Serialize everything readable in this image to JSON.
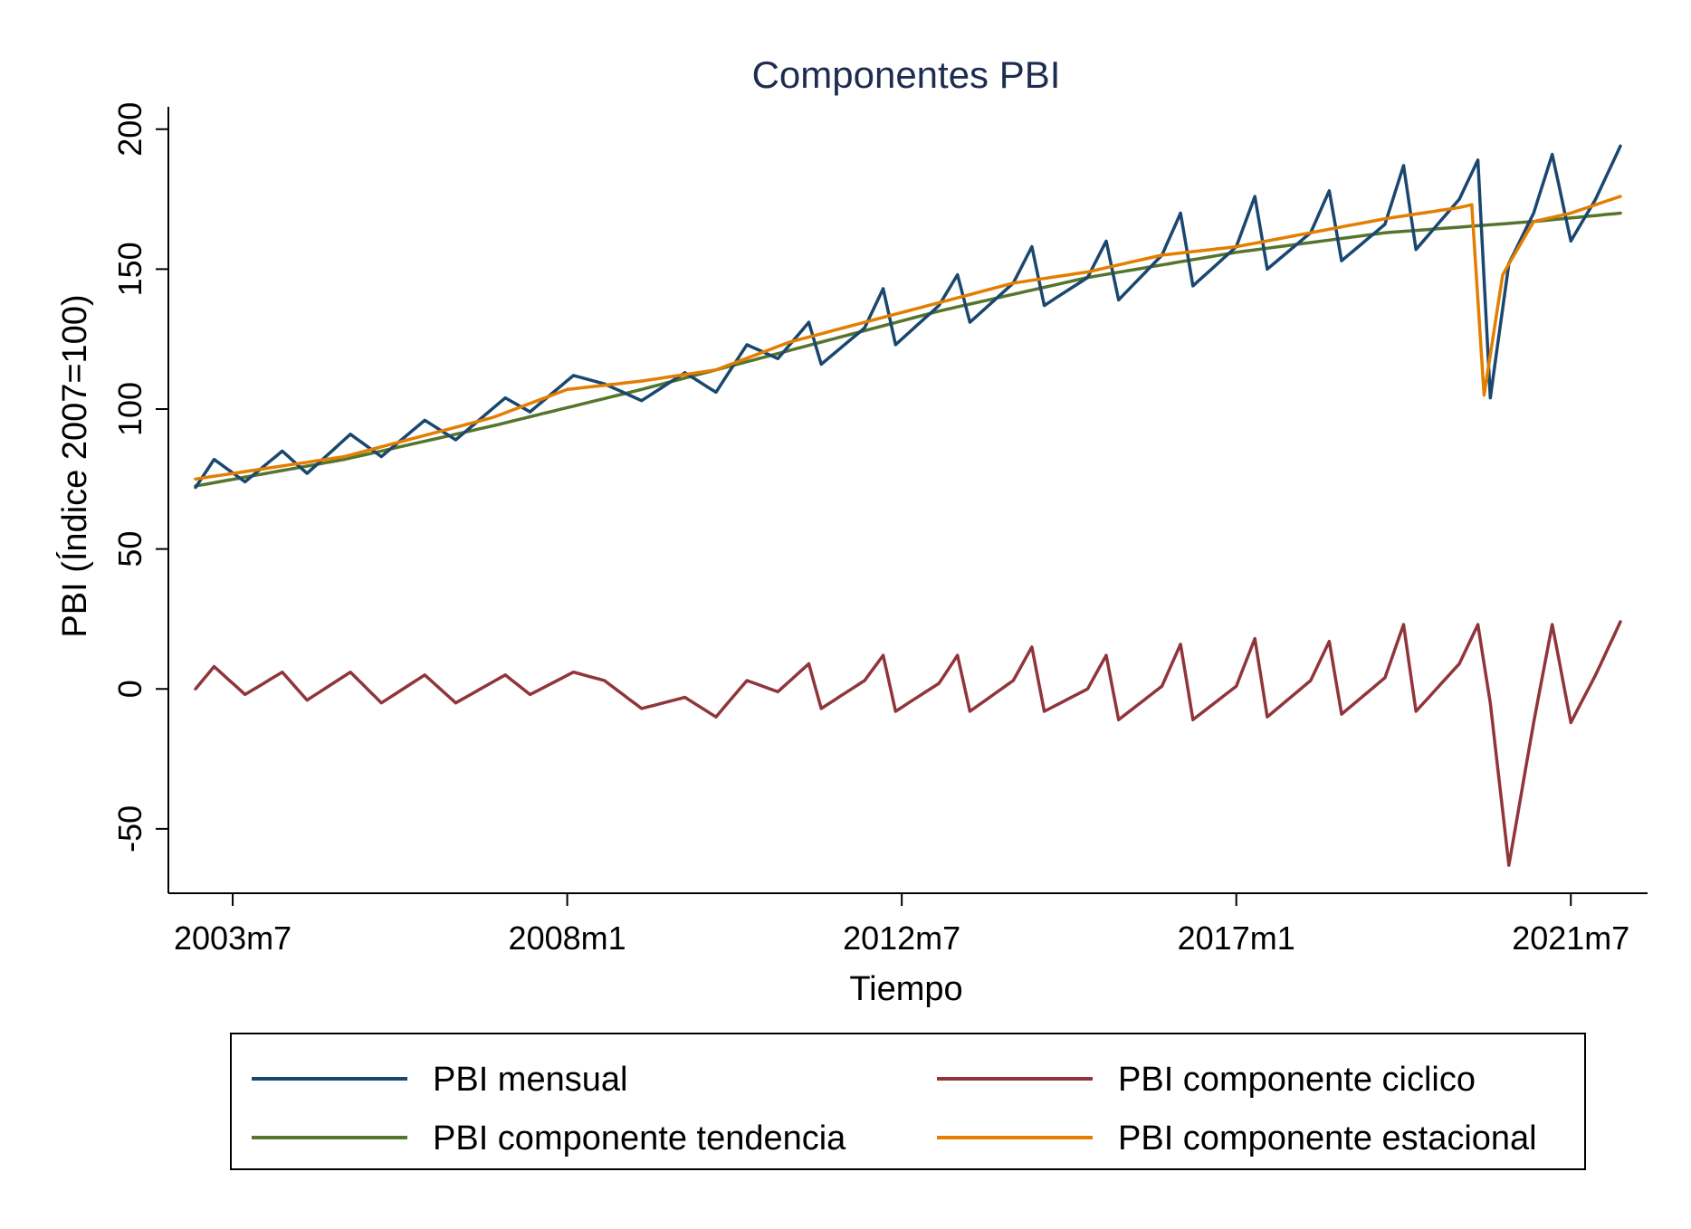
{
  "chart_data": {
    "type": "line",
    "title": "Componentes PBI",
    "xlabel": "Tiempo",
    "ylabel": "PBI (Índice 2007=100)",
    "x_start": "2003m1",
    "x_end": "2022m3",
    "x_ticks": [
      "2003m7",
      "2008m1",
      "2012m7",
      "2017m1",
      "2021m7"
    ],
    "y_ticks": [
      "-50",
      "0",
      "50",
      "100",
      "150",
      "200"
    ],
    "ylim": [
      -73,
      208
    ],
    "grid": false,
    "legend_position": "bottom",
    "colors": {
      "mensual": "#1a476f",
      "tendencia": "#55752f",
      "estacional": "#e37e00",
      "ciclico": "#90353b"
    },
    "series": [
      {
        "name": "PBI mensual",
        "color": "#1a476f",
        "keypoints": [
          [
            "2003m1",
            72
          ],
          [
            "2003m4",
            82
          ],
          [
            "2003m9",
            74
          ],
          [
            "2004m3",
            85
          ],
          [
            "2004m7",
            77
          ],
          [
            "2005m2",
            91
          ],
          [
            "2005m7",
            83
          ],
          [
            "2006m2",
            96
          ],
          [
            "2006m7",
            89
          ],
          [
            "2007m3",
            104
          ],
          [
            "2007m7",
            99
          ],
          [
            "2008m2",
            112
          ],
          [
            "2008m7",
            109
          ],
          [
            "2009m1",
            103
          ],
          [
            "2009m8",
            113
          ],
          [
            "2010m1",
            106
          ],
          [
            "2010m6",
            123
          ],
          [
            "2010m11",
            118
          ],
          [
            "2011m4",
            131
          ],
          [
            "2011m6",
            116
          ],
          [
            "2012m1",
            129
          ],
          [
            "2012m4",
            143
          ],
          [
            "2012m6",
            123
          ],
          [
            "2013m1",
            137
          ],
          [
            "2013m4",
            148
          ],
          [
            "2013m6",
            131
          ],
          [
            "2014m1",
            145
          ],
          [
            "2014m4",
            158
          ],
          [
            "2014m6",
            137
          ],
          [
            "2015m1",
            147
          ],
          [
            "2015m4",
            160
          ],
          [
            "2015m6",
            139
          ],
          [
            "2016m1",
            155
          ],
          [
            "2016m4",
            170
          ],
          [
            "2016m6",
            144
          ],
          [
            "2017m1",
            158
          ],
          [
            "2017m4",
            176
          ],
          [
            "2017m6",
            150
          ],
          [
            "2018m1",
            163
          ],
          [
            "2018m4",
            178
          ],
          [
            "2018m6",
            153
          ],
          [
            "2019m1",
            166
          ],
          [
            "2019m4",
            187
          ],
          [
            "2019m6",
            157
          ],
          [
            "2020m1",
            175
          ],
          [
            "2020m4",
            189
          ],
          [
            "2020m6",
            104
          ],
          [
            "2020m9",
            152
          ],
          [
            "2021m1",
            170
          ],
          [
            "2021m4",
            191
          ],
          [
            "2021m7",
            160
          ],
          [
            "2021m11",
            175
          ],
          [
            "2022m3",
            194
          ]
        ]
      },
      {
        "name": "PBI componente tendencia",
        "color": "#55752f",
        "keypoints": [
          [
            "2003m1",
            72.5
          ],
          [
            "2005m1",
            82
          ],
          [
            "2007m1",
            94
          ],
          [
            "2009m1",
            107
          ],
          [
            "2011m1",
            121
          ],
          [
            "2013m1",
            135
          ],
          [
            "2015m1",
            147
          ],
          [
            "2017m1",
            156
          ],
          [
            "2019m1",
            163
          ],
          [
            "2021m1",
            167
          ],
          [
            "2022m3",
            170
          ]
        ]
      },
      {
        "name": "PBI componente estacional",
        "color": "#e37e00",
        "keypoints": [
          [
            "2003m1",
            75
          ],
          [
            "2004m1",
            79
          ],
          [
            "2005m1",
            83
          ],
          [
            "2006m1",
            90
          ],
          [
            "2007m1",
            97
          ],
          [
            "2008m1",
            107
          ],
          [
            "2009m1",
            110
          ],
          [
            "2010m1",
            114
          ],
          [
            "2011m1",
            124
          ],
          [
            "2012m1",
            131
          ],
          [
            "2013m1",
            138
          ],
          [
            "2014m1",
            145
          ],
          [
            "2015m1",
            149
          ],
          [
            "2016m1",
            155
          ],
          [
            "2017m1",
            158
          ],
          [
            "2018m1",
            163
          ],
          [
            "2019m1",
            168
          ],
          [
            "2020m1",
            172
          ],
          [
            "2020m3",
            173
          ],
          [
            "2020m5",
            105
          ],
          [
            "2020m8",
            148
          ],
          [
            "2021m1",
            167
          ],
          [
            "2021m7",
            170
          ],
          [
            "2022m3",
            176
          ]
        ]
      },
      {
        "name": "PBI componente ciclico",
        "color": "#90353b",
        "keypoints": [
          [
            "2003m1",
            0
          ],
          [
            "2003m4",
            8
          ],
          [
            "2003m9",
            -2
          ],
          [
            "2004m3",
            6
          ],
          [
            "2004m7",
            -4
          ],
          [
            "2005m2",
            6
          ],
          [
            "2005m7",
            -5
          ],
          [
            "2006m2",
            5
          ],
          [
            "2006m7",
            -5
          ],
          [
            "2007m3",
            5
          ],
          [
            "2007m7",
            -2
          ],
          [
            "2008m2",
            6
          ],
          [
            "2008m7",
            3
          ],
          [
            "2009m1",
            -7
          ],
          [
            "2009m8",
            -3
          ],
          [
            "2010m1",
            -10
          ],
          [
            "2010m6",
            3
          ],
          [
            "2010m11",
            -1
          ],
          [
            "2011m4",
            9
          ],
          [
            "2011m6",
            -7
          ],
          [
            "2012m1",
            3
          ],
          [
            "2012m4",
            12
          ],
          [
            "2012m6",
            -8
          ],
          [
            "2013m1",
            2
          ],
          [
            "2013m4",
            12
          ],
          [
            "2013m6",
            -8
          ],
          [
            "2014m1",
            3
          ],
          [
            "2014m4",
            15
          ],
          [
            "2014m6",
            -8
          ],
          [
            "2015m1",
            0
          ],
          [
            "2015m4",
            12
          ],
          [
            "2015m6",
            -11
          ],
          [
            "2016m1",
            1
          ],
          [
            "2016m4",
            16
          ],
          [
            "2016m6",
            -11
          ],
          [
            "2017m1",
            1
          ],
          [
            "2017m4",
            18
          ],
          [
            "2017m6",
            -10
          ],
          [
            "2018m1",
            3
          ],
          [
            "2018m4",
            17
          ],
          [
            "2018m6",
            -9
          ],
          [
            "2019m1",
            4
          ],
          [
            "2019m4",
            23
          ],
          [
            "2019m6",
            -8
          ],
          [
            "2020m1",
            9
          ],
          [
            "2020m4",
            23
          ],
          [
            "2020m6",
            -5
          ],
          [
            "2020m9",
            -63
          ],
          [
            "2021m1",
            -12
          ],
          [
            "2021m4",
            23
          ],
          [
            "2021m7",
            -12
          ],
          [
            "2021m11",
            5
          ],
          [
            "2022m3",
            24
          ]
        ]
      }
    ]
  },
  "legend": {
    "items": [
      {
        "label": "PBI mensual",
        "color": "#1a476f"
      },
      {
        "label": "PBI componente ciclico",
        "color": "#90353b"
      },
      {
        "label": "PBI componente tendencia",
        "color": "#55752f"
      },
      {
        "label": "PBI componente estacional",
        "color": "#e37e00"
      }
    ]
  }
}
